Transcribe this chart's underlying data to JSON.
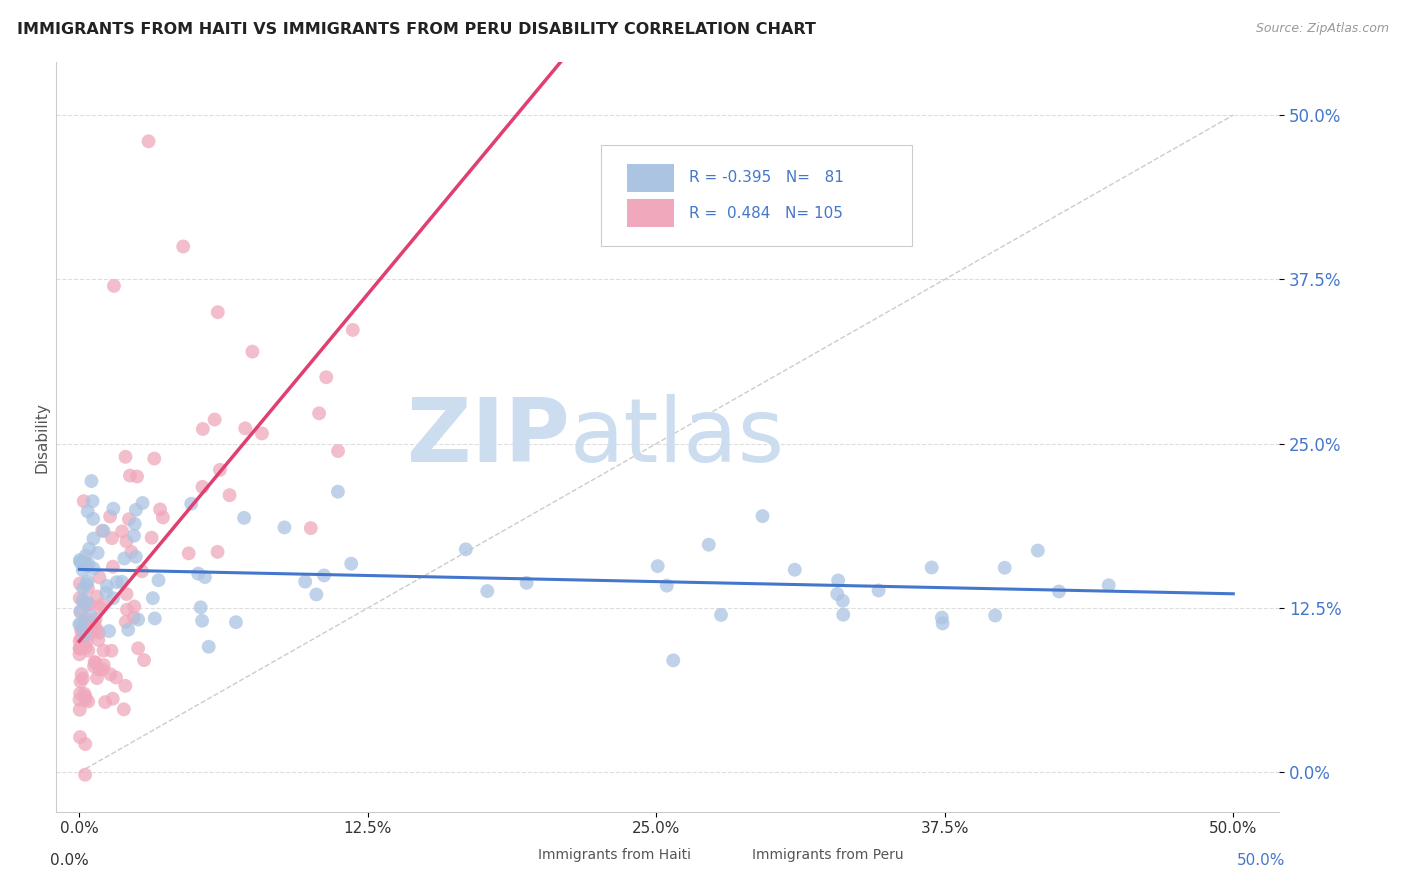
{
  "title": "IMMIGRANTS FROM HAITI VS IMMIGRANTS FROM PERU DISABILITY CORRELATION CHART",
  "source": "Source: ZipAtlas.com",
  "ylabel": "Disability",
  "ytick_values": [
    0.0,
    12.5,
    25.0,
    37.5,
    50.0
  ],
  "xtick_values": [
    0.0,
    12.5,
    25.0,
    37.5,
    50.0
  ],
  "xlim": [
    -1.0,
    52.0
  ],
  "ylim": [
    -3.0,
    54.0
  ],
  "legend_haiti_R": "-0.395",
  "legend_haiti_N": "81",
  "legend_peru_R": "0.484",
  "legend_peru_N": "105",
  "color_haiti": "#aac4e2",
  "color_peru": "#f0a8bc",
  "trendline_haiti_color": "#4477cc",
  "trendline_peru_color": "#e04070",
  "trendline_diagonal_color": "#cccccc",
  "watermark_color": "#ccddf0",
  "background_color": "#ffffff",
  "grid_color": "#dddddd",
  "title_color": "#222222",
  "source_color": "#999999",
  "ytick_color": "#4477cc",
  "xtick_color": "#333333",
  "legend_text_color": "#4477cc",
  "ylabel_color": "#555555"
}
